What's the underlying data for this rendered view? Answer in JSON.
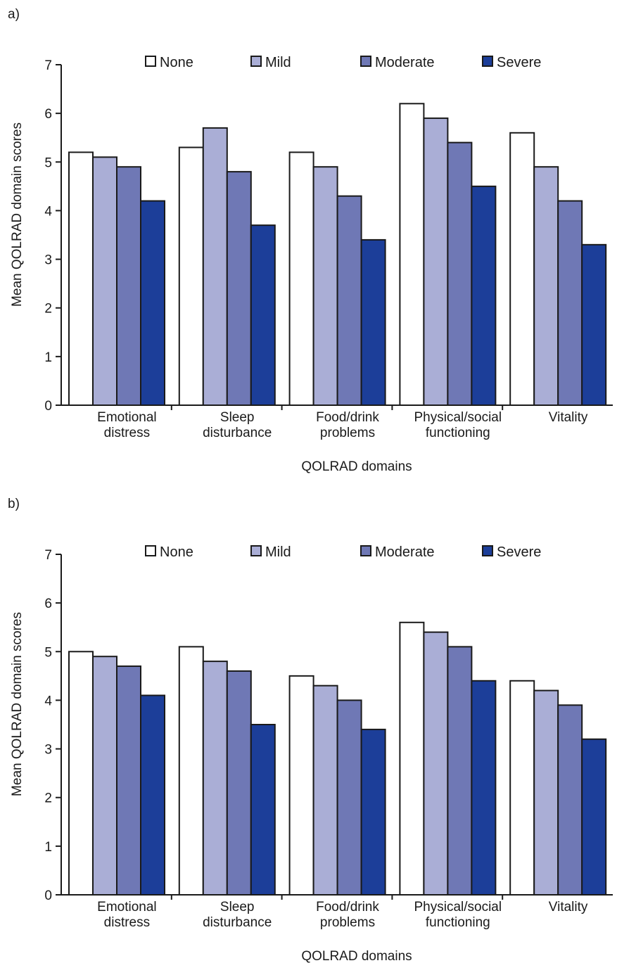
{
  "colors": {
    "None": "#ffffff",
    "Mild": "#aaaed6",
    "Moderate": "#6f78b5",
    "Severe": "#1c3e99",
    "stroke": "#1a1a1a"
  },
  "chart_data": [
    {
      "panel_label": "a)",
      "type": "bar",
      "categories": [
        [
          "Emotional",
          "distress"
        ],
        [
          "Sleep",
          "disturbance"
        ],
        [
          "Food/drink",
          "problems"
        ],
        [
          "Physical/social",
          "functioning"
        ],
        [
          "Vitality"
        ]
      ],
      "series": [
        {
          "name": "None",
          "values": [
            5.2,
            5.3,
            5.2,
            6.2,
            5.6
          ]
        },
        {
          "name": "Mild",
          "values": [
            5.1,
            5.7,
            4.9,
            5.9,
            4.9
          ]
        },
        {
          "name": "Moderate",
          "values": [
            4.9,
            4.8,
            4.3,
            5.4,
            4.2
          ]
        },
        {
          "name": "Severe",
          "values": [
            4.2,
            3.7,
            3.4,
            4.5,
            3.3
          ]
        }
      ],
      "xlabel": "QOLRAD domains",
      "ylabel": "Mean QOLRAD domain scores",
      "ylim": [
        0,
        7
      ],
      "yticks": [
        "0",
        "1",
        "2",
        "3",
        "4",
        "5",
        "6",
        "7"
      ],
      "legend_position": "top",
      "grid": false
    },
    {
      "panel_label": "b)",
      "type": "bar",
      "categories": [
        [
          "Emotional",
          "distress"
        ],
        [
          "Sleep",
          "disturbance"
        ],
        [
          "Food/drink",
          "problems"
        ],
        [
          "Physical/social",
          "functioning"
        ],
        [
          "Vitality"
        ]
      ],
      "series": [
        {
          "name": "None",
          "values": [
            5.0,
            5.1,
            4.5,
            5.6,
            4.4
          ]
        },
        {
          "name": "Mild",
          "values": [
            4.9,
            4.8,
            4.3,
            5.4,
            4.2
          ]
        },
        {
          "name": "Moderate",
          "values": [
            4.7,
            4.6,
            4.0,
            5.1,
            3.9
          ]
        },
        {
          "name": "Severe",
          "values": [
            4.1,
            3.5,
            3.4,
            4.4,
            3.2
          ]
        }
      ],
      "xlabel": "QOLRAD domains",
      "ylabel": "Mean QOLRAD domain scores",
      "ylim": [
        0,
        7
      ],
      "yticks": [
        "0",
        "1",
        "2",
        "3",
        "4",
        "5",
        "6",
        "7"
      ],
      "legend_position": "top",
      "grid": false
    }
  ]
}
